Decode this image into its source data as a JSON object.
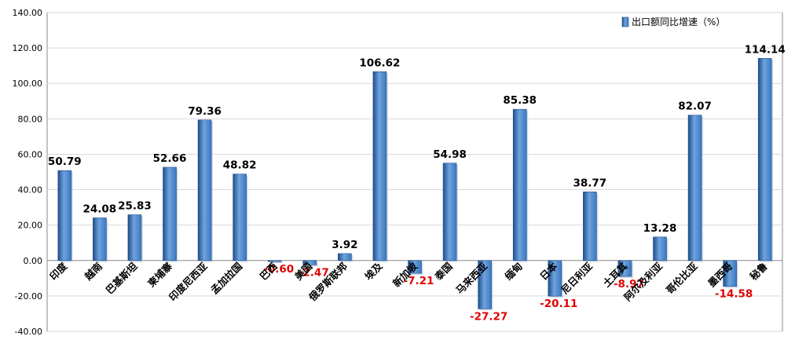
{
  "chart_data": {
    "type": "bar",
    "title": "",
    "xlabel": "",
    "ylabel": "",
    "ylim": [
      -40,
      140
    ],
    "yticks": [
      "-40.00",
      "-20.00",
      "0.00",
      "20.00",
      "40.00",
      "60.00",
      "80.00",
      "100.00",
      "120.00",
      "140.00"
    ],
    "grid": true,
    "legend_position": "top-right",
    "categories": [
      "印度",
      "越南",
      "巴基斯坦",
      "柬埔寨",
      "印度尼西亚",
      "孟加拉国",
      "巴西",
      "美国",
      "俄罗斯联邦",
      "埃及",
      "新加坡",
      "泰国",
      "马来西亚",
      "缅甸",
      "日本",
      "尼日利亚",
      "土耳其",
      "阿尔及利亚",
      "哥伦比亚",
      "墨西哥",
      "秘鲁"
    ],
    "series": [
      {
        "name": "出口额同比增速（%）",
        "values": [
          50.79,
          24.08,
          25.83,
          52.66,
          79.36,
          48.82,
          -0.6,
          -2.47,
          3.92,
          106.62,
          -7.21,
          54.98,
          -27.27,
          85.38,
          -20.11,
          38.77,
          -8.97,
          13.28,
          82.07,
          -14.58,
          114.14
        ]
      }
    ],
    "data_labels": [
      "50.79",
      "24.08",
      "25.83",
      "52.66",
      "79.36",
      "48.82",
      "-0.60",
      "-2.47",
      "3.92",
      "106.62",
      "-7.21",
      "54.98",
      "-27.27",
      "85.38",
      "-20.11",
      "38.77",
      "-8.97",
      "13.28",
      "82.07",
      "-14.58",
      "114.14"
    ],
    "colors": {
      "bar_dark": "#1f4e8c",
      "bar_mid": "#3a78c2",
      "bar_light": "#6fa3dc",
      "positive_label": "#000000",
      "negative_label": "#e00000",
      "grid": "#d9d9d9",
      "axis": "#888888"
    }
  }
}
